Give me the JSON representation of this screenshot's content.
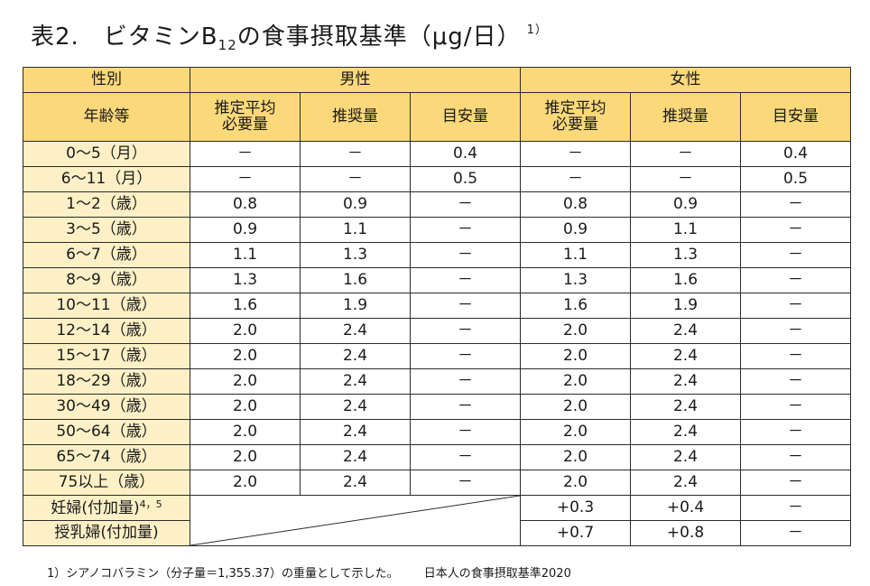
{
  "title": {
    "prefix": "表2.　ビタミンB",
    "subscript": "12",
    "suffix": "の食事摂取基準（μg/日）",
    "note_ref": "1）"
  },
  "header": {
    "sex_label": "性別",
    "male": "男性",
    "female": "女性",
    "age_label": "年齢等",
    "columns": [
      "推定平均必要量",
      "推奨量",
      "目安量",
      "推定平均必要量",
      "推奨量",
      "目安量"
    ]
  },
  "rows": [
    {
      "age": "0～5（月）",
      "values": [
        "－",
        "－",
        "0.4",
        "－",
        "－",
        "0.4"
      ]
    },
    {
      "age": "6～11（月）",
      "values": [
        "－",
        "－",
        "0.5",
        "－",
        "－",
        "0.5"
      ]
    },
    {
      "age": "1～2（歳）",
      "values": [
        "0.8",
        "0.9",
        "－",
        "0.8",
        "0.9",
        "－"
      ]
    },
    {
      "age": "3～5（歳）",
      "values": [
        "0.9",
        "1.1",
        "－",
        "0.9",
        "1.1",
        "－"
      ]
    },
    {
      "age": "6～7（歳）",
      "values": [
        "1.1",
        "1.3",
        "－",
        "1.1",
        "1.3",
        "－"
      ]
    },
    {
      "age": "8～9（歳）",
      "values": [
        "1.3",
        "1.6",
        "－",
        "1.3",
        "1.6",
        "－"
      ]
    },
    {
      "age": "10～11（歳）",
      "values": [
        "1.6",
        "1.9",
        "－",
        "1.6",
        "1.9",
        "－"
      ]
    },
    {
      "age": "12～14（歳）",
      "values": [
        "2.0",
        "2.4",
        "－",
        "2.0",
        "2.4",
        "－"
      ]
    },
    {
      "age": "15～17（歳）",
      "values": [
        "2.0",
        "2.4",
        "－",
        "2.0",
        "2.4",
        "－"
      ]
    },
    {
      "age": "18～29（歳）",
      "values": [
        "2.0",
        "2.4",
        "－",
        "2.0",
        "2.4",
        "－"
      ]
    },
    {
      "age": "30～49（歳）",
      "values": [
        "2.0",
        "2.4",
        "－",
        "2.0",
        "2.4",
        "－"
      ]
    },
    {
      "age": "50～64（歳）",
      "values": [
        "2.0",
        "2.4",
        "－",
        "2.0",
        "2.4",
        "－"
      ]
    },
    {
      "age": "65～74（歳）",
      "values": [
        "2.0",
        "2.4",
        "－",
        "2.0",
        "2.4",
        "－"
      ]
    },
    {
      "age": "75以上（歳）",
      "values": [
        "2.0",
        "2.4",
        "－",
        "2.0",
        "2.4",
        "－"
      ]
    }
  ],
  "pregnant": {
    "label": "妊婦(付加量)",
    "sup": "4，5",
    "values": [
      "+0.3",
      "+0.4",
      "－"
    ]
  },
  "lactating": {
    "label": "授乳婦(付加量)",
    "values": [
      "+0.7",
      "+0.8",
      "－"
    ]
  },
  "footnote": {
    "text": "1）シアノコバラミン（分子量＝1,355.37）の重量として示した。",
    "source": "日本人の食事摂取基準2020"
  },
  "colors": {
    "header_bg": "#fbd97a",
    "age_bg": "#fdf0c6",
    "border": "#2b2b2b"
  }
}
